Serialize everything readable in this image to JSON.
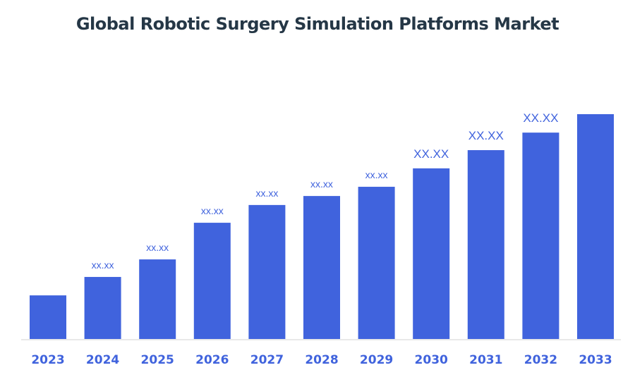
{
  "chart_data": {
    "type": "bar",
    "title": "Global Robotic Surgery Simulation Platforms Market",
    "xlabel": "",
    "ylabel": "",
    "categories": [
      "2023",
      "2024",
      "2025",
      "2026",
      "2027",
      "2028",
      "2029",
      "2030",
      "2031",
      "2032",
      "2033"
    ],
    "values": [
      19.4,
      27.6,
      35.4,
      51.7,
      59.6,
      63.6,
      67.7,
      75.9,
      84.0,
      91.8,
      100
    ],
    "data_labels": [
      "",
      "xx.xx",
      "xx.xx",
      "xx.xx",
      "xx.xx",
      "xx.xx",
      "xx.xx",
      "XX.XX",
      "XX.XX",
      "XX.XX",
      ""
    ],
    "ylim": [
      0,
      100
    ],
    "y_axis_shown": false,
    "grid": false,
    "legend": "none",
    "bar_color": "#4063DD",
    "label_color": "#4063DD",
    "tick_label_color": "#4063DD"
  }
}
